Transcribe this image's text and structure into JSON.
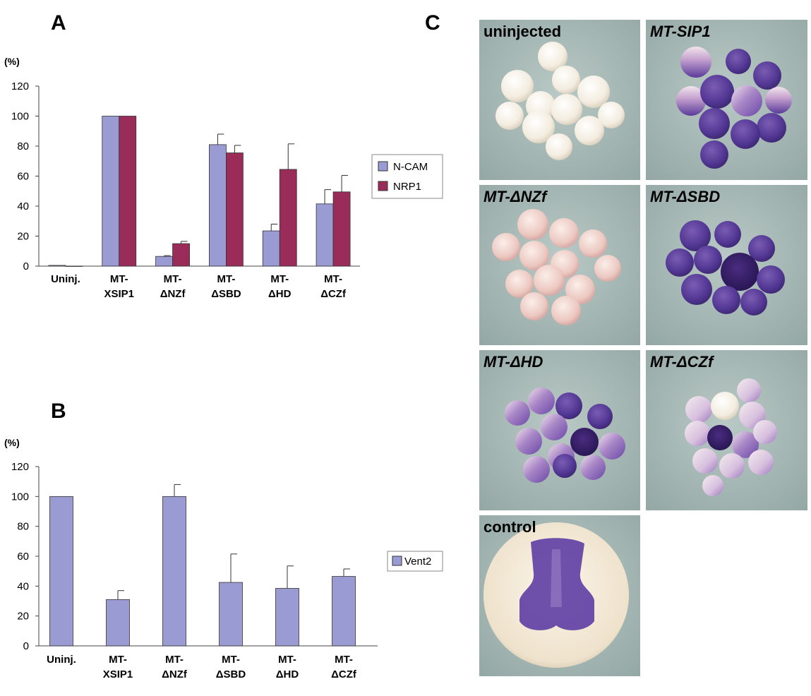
{
  "panel_labels": {
    "a": "A",
    "b": "B",
    "c": "C"
  },
  "colors": {
    "ncam": "#9a9bd3",
    "nrp1": "#9a2c5a",
    "vent2": "#9a9bd3"
  },
  "chart_data": [
    {
      "type": "bar",
      "panel": "A",
      "ylabel": "(%)",
      "ylim": [
        0,
        120
      ],
      "yticks": [
        "0",
        "20",
        "40",
        "60",
        "80",
        "100",
        "120"
      ],
      "categories": [
        [
          "Uninj."
        ],
        [
          "MT-",
          "XSIP1"
        ],
        [
          "MT-",
          "ΔNZf"
        ],
        [
          "MT-",
          "ΔSBD"
        ],
        [
          "MT-",
          "ΔHD"
        ],
        [
          "MT-",
          "ΔCZf"
        ]
      ],
      "legend": [
        "N-CAM",
        "NRP1"
      ],
      "series": [
        {
          "name": "N-CAM",
          "values": [
            0.5,
            100,
            6.5,
            81,
            23.5,
            41.5
          ],
          "errors": [
            0,
            0,
            0.5,
            7,
            4.5,
            9.5
          ]
        },
        {
          "name": "NRP1",
          "values": [
            0,
            100,
            15,
            75.5,
            64.5,
            49.5
          ],
          "errors": [
            0,
            0,
            1.5,
            5,
            17,
            11
          ]
        }
      ]
    },
    {
      "type": "bar",
      "panel": "B",
      "ylabel": "(%)",
      "ylim": [
        0,
        120
      ],
      "yticks": [
        "0",
        "20",
        "40",
        "60",
        "80",
        "100",
        "120"
      ],
      "categories": [
        [
          "Uninj."
        ],
        [
          "MT-",
          "XSIP1"
        ],
        [
          "MT-",
          "ΔNZf"
        ],
        [
          "MT-",
          "ΔSBD"
        ],
        [
          "MT-",
          "ΔHD"
        ],
        [
          "MT-",
          "ΔCZf"
        ]
      ],
      "legend": [
        "Vent2"
      ],
      "series": [
        {
          "name": "Vent2",
          "values": [
            100,
            31,
            100,
            42.5,
            38.5,
            46.5
          ],
          "errors": [
            0,
            6,
            8,
            19,
            15,
            5
          ]
        }
      ]
    }
  ],
  "photos": {
    "uninjected": "uninjected",
    "sip1": "MT-SIP1",
    "nzf": "MT-ΔNZf",
    "sbd": "MT-ΔSBD",
    "hd": "MT-ΔHD",
    "czf": "MT-ΔCZf",
    "control": "control"
  }
}
